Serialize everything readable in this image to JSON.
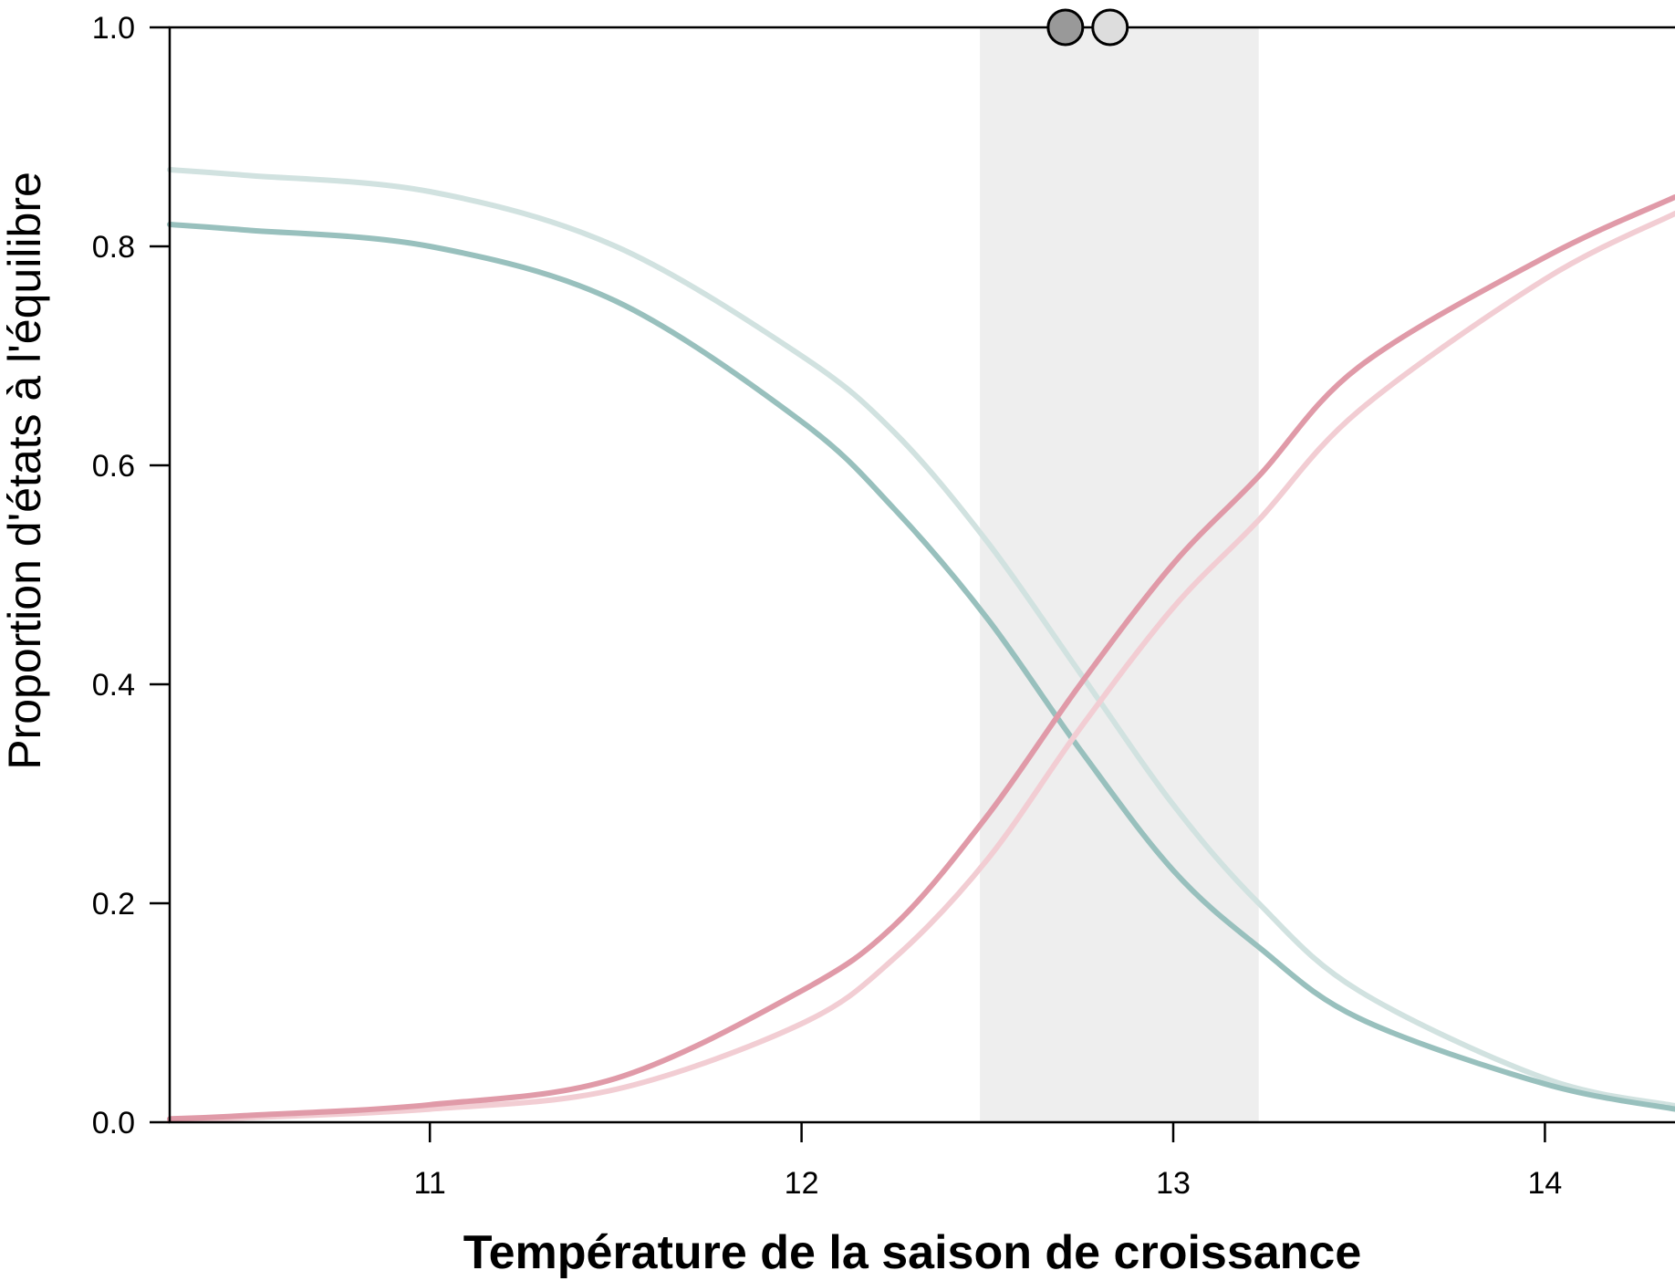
{
  "chart_data": {
    "type": "line",
    "xlabel": "Température de la saison de croissance",
    "ylabel": "Proportion d'états à l'équilibre",
    "xlim": [
      10.3,
      14.35
    ],
    "ylim": [
      0.0,
      1.0
    ],
    "x_ticks": [
      11,
      12,
      13,
      14
    ],
    "y_ticks": [
      0.0,
      0.2,
      0.4,
      0.6,
      0.8,
      1.0
    ],
    "grid": false,
    "shaded_band": {
      "x_start": 12.48,
      "x_end": 13.23,
      "color": "#eeeeee"
    },
    "points": [
      {
        "x": 12.71,
        "y": 1.0,
        "color": "#999999"
      },
      {
        "x": 12.83,
        "y": 1.0,
        "color": "#dddddd"
      }
    ],
    "series": [
      {
        "color": "#d1e2e0",
        "x": [
          10.3,
          10.5,
          11.0,
          11.5,
          12.0,
          12.25,
          12.5,
          12.75,
          13.0,
          13.23,
          13.5,
          14.0,
          14.35
        ],
        "y": [
          0.87,
          0.865,
          0.85,
          0.8,
          0.7,
          0.63,
          0.53,
          0.41,
          0.29,
          0.2,
          0.12,
          0.04,
          0.015
        ]
      },
      {
        "color": "#98c0bd",
        "x": [
          10.3,
          10.5,
          11.0,
          11.5,
          12.0,
          12.25,
          12.5,
          12.75,
          13.0,
          13.23,
          13.5,
          14.0,
          14.35
        ],
        "y": [
          0.82,
          0.815,
          0.8,
          0.75,
          0.64,
          0.56,
          0.46,
          0.34,
          0.23,
          0.16,
          0.095,
          0.035,
          0.012
        ]
      },
      {
        "color": "#f2cdd3",
        "x": [
          10.3,
          10.5,
          11.0,
          11.5,
          12.0,
          12.25,
          12.5,
          12.75,
          13.0,
          13.23,
          13.5,
          14.0,
          14.35
        ],
        "y": [
          0.002,
          0.004,
          0.012,
          0.03,
          0.09,
          0.15,
          0.24,
          0.36,
          0.47,
          0.55,
          0.65,
          0.77,
          0.83
        ]
      },
      {
        "color": "#e09aa8",
        "x": [
          10.3,
          10.5,
          11.0,
          11.5,
          12.0,
          12.25,
          12.5,
          12.75,
          13.0,
          13.23,
          13.5,
          14.0,
          14.35
        ],
        "y": [
          0.003,
          0.006,
          0.016,
          0.04,
          0.12,
          0.18,
          0.28,
          0.4,
          0.51,
          0.59,
          0.69,
          0.79,
          0.845
        ]
      }
    ]
  }
}
